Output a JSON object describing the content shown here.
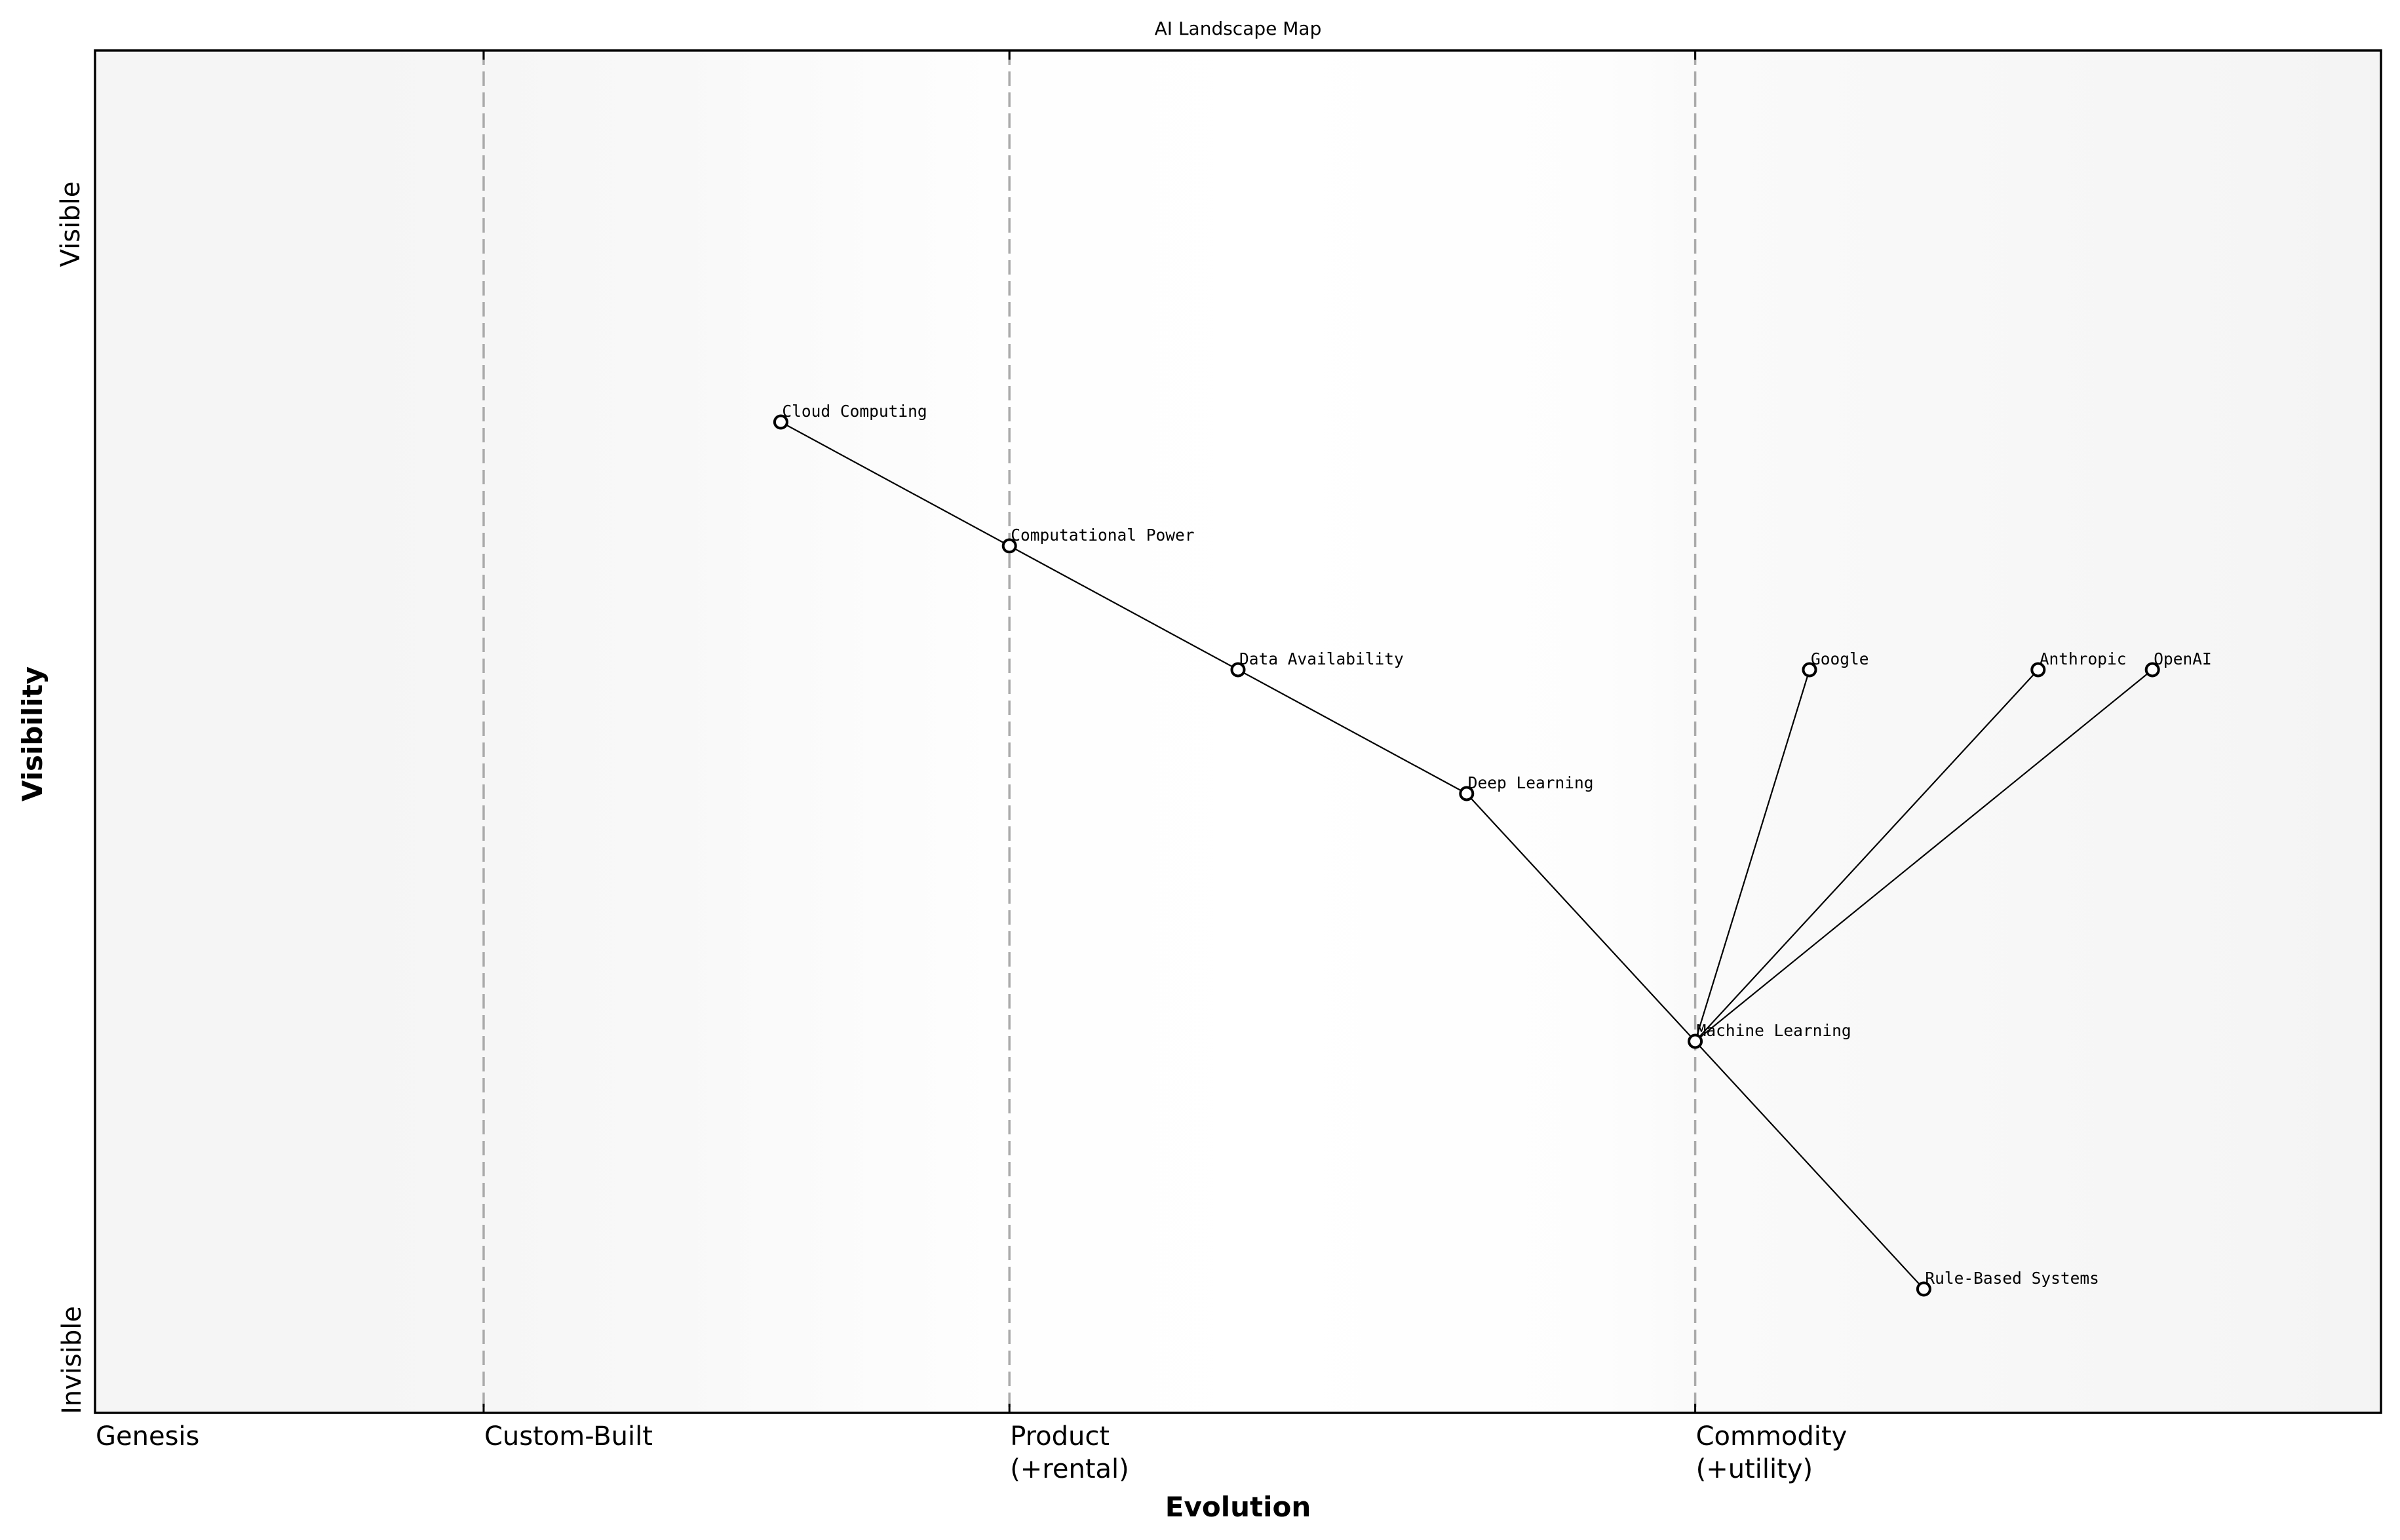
{
  "chart_data": {
    "type": "scatter",
    "subtype": "wardley-map",
    "title": "AI Landscape Map",
    "xlabel": "Evolution",
    "ylabel": "Visibility",
    "xlim": [
      0,
      1
    ],
    "ylim": [
      0,
      1.1
    ],
    "grid": false,
    "legend": null,
    "y_annotations": [
      {
        "label": "Visible",
        "position": "top"
      },
      {
        "label": "Invisible",
        "position": "bottom"
      }
    ],
    "evolution_stages": [
      {
        "label": "Genesis",
        "x": 0.0,
        "divider": false
      },
      {
        "label": "Custom-Built",
        "x": 0.17,
        "divider": true
      },
      {
        "label": "Product\n(+rental)",
        "x": 0.4,
        "divider": true
      },
      {
        "label": "Commodity\n(+utility)",
        "x": 0.7,
        "divider": true
      }
    ],
    "components": [
      {
        "id": "cloud",
        "name": "Cloud Computing",
        "x": 0.3,
        "y": 0.8
      },
      {
        "id": "compute",
        "name": "Computational Power",
        "x": 0.4,
        "y": 0.7
      },
      {
        "id": "data",
        "name": "Data Availability",
        "x": 0.5,
        "y": 0.6
      },
      {
        "id": "deep",
        "name": "Deep Learning",
        "x": 0.6,
        "y": 0.5
      },
      {
        "id": "ml",
        "name": "Machine Learning",
        "x": 0.7,
        "y": 0.3
      },
      {
        "id": "google",
        "name": "Google",
        "x": 0.75,
        "y": 0.6
      },
      {
        "id": "anthropic",
        "name": "Anthropic",
        "x": 0.85,
        "y": 0.6
      },
      {
        "id": "openai",
        "name": "OpenAI",
        "x": 0.9,
        "y": 0.6
      },
      {
        "id": "rule",
        "name": "Rule-Based Systems",
        "x": 0.8,
        "y": 0.1
      }
    ],
    "links": [
      [
        "cloud",
        "compute"
      ],
      [
        "compute",
        "data"
      ],
      [
        "data",
        "deep"
      ],
      [
        "deep",
        "ml"
      ],
      [
        "ml",
        "google"
      ],
      [
        "ml",
        "anthropic"
      ],
      [
        "ml",
        "openai"
      ],
      [
        "ml",
        "rule"
      ]
    ]
  },
  "colors": {
    "frame": "#000000",
    "divider": "#aaaaaa",
    "link": "#000000",
    "marker_fill": "#ffffff",
    "marker_stroke": "#000000",
    "bg_edge": "#f5f5f5",
    "bg_center": "#ffffff"
  }
}
